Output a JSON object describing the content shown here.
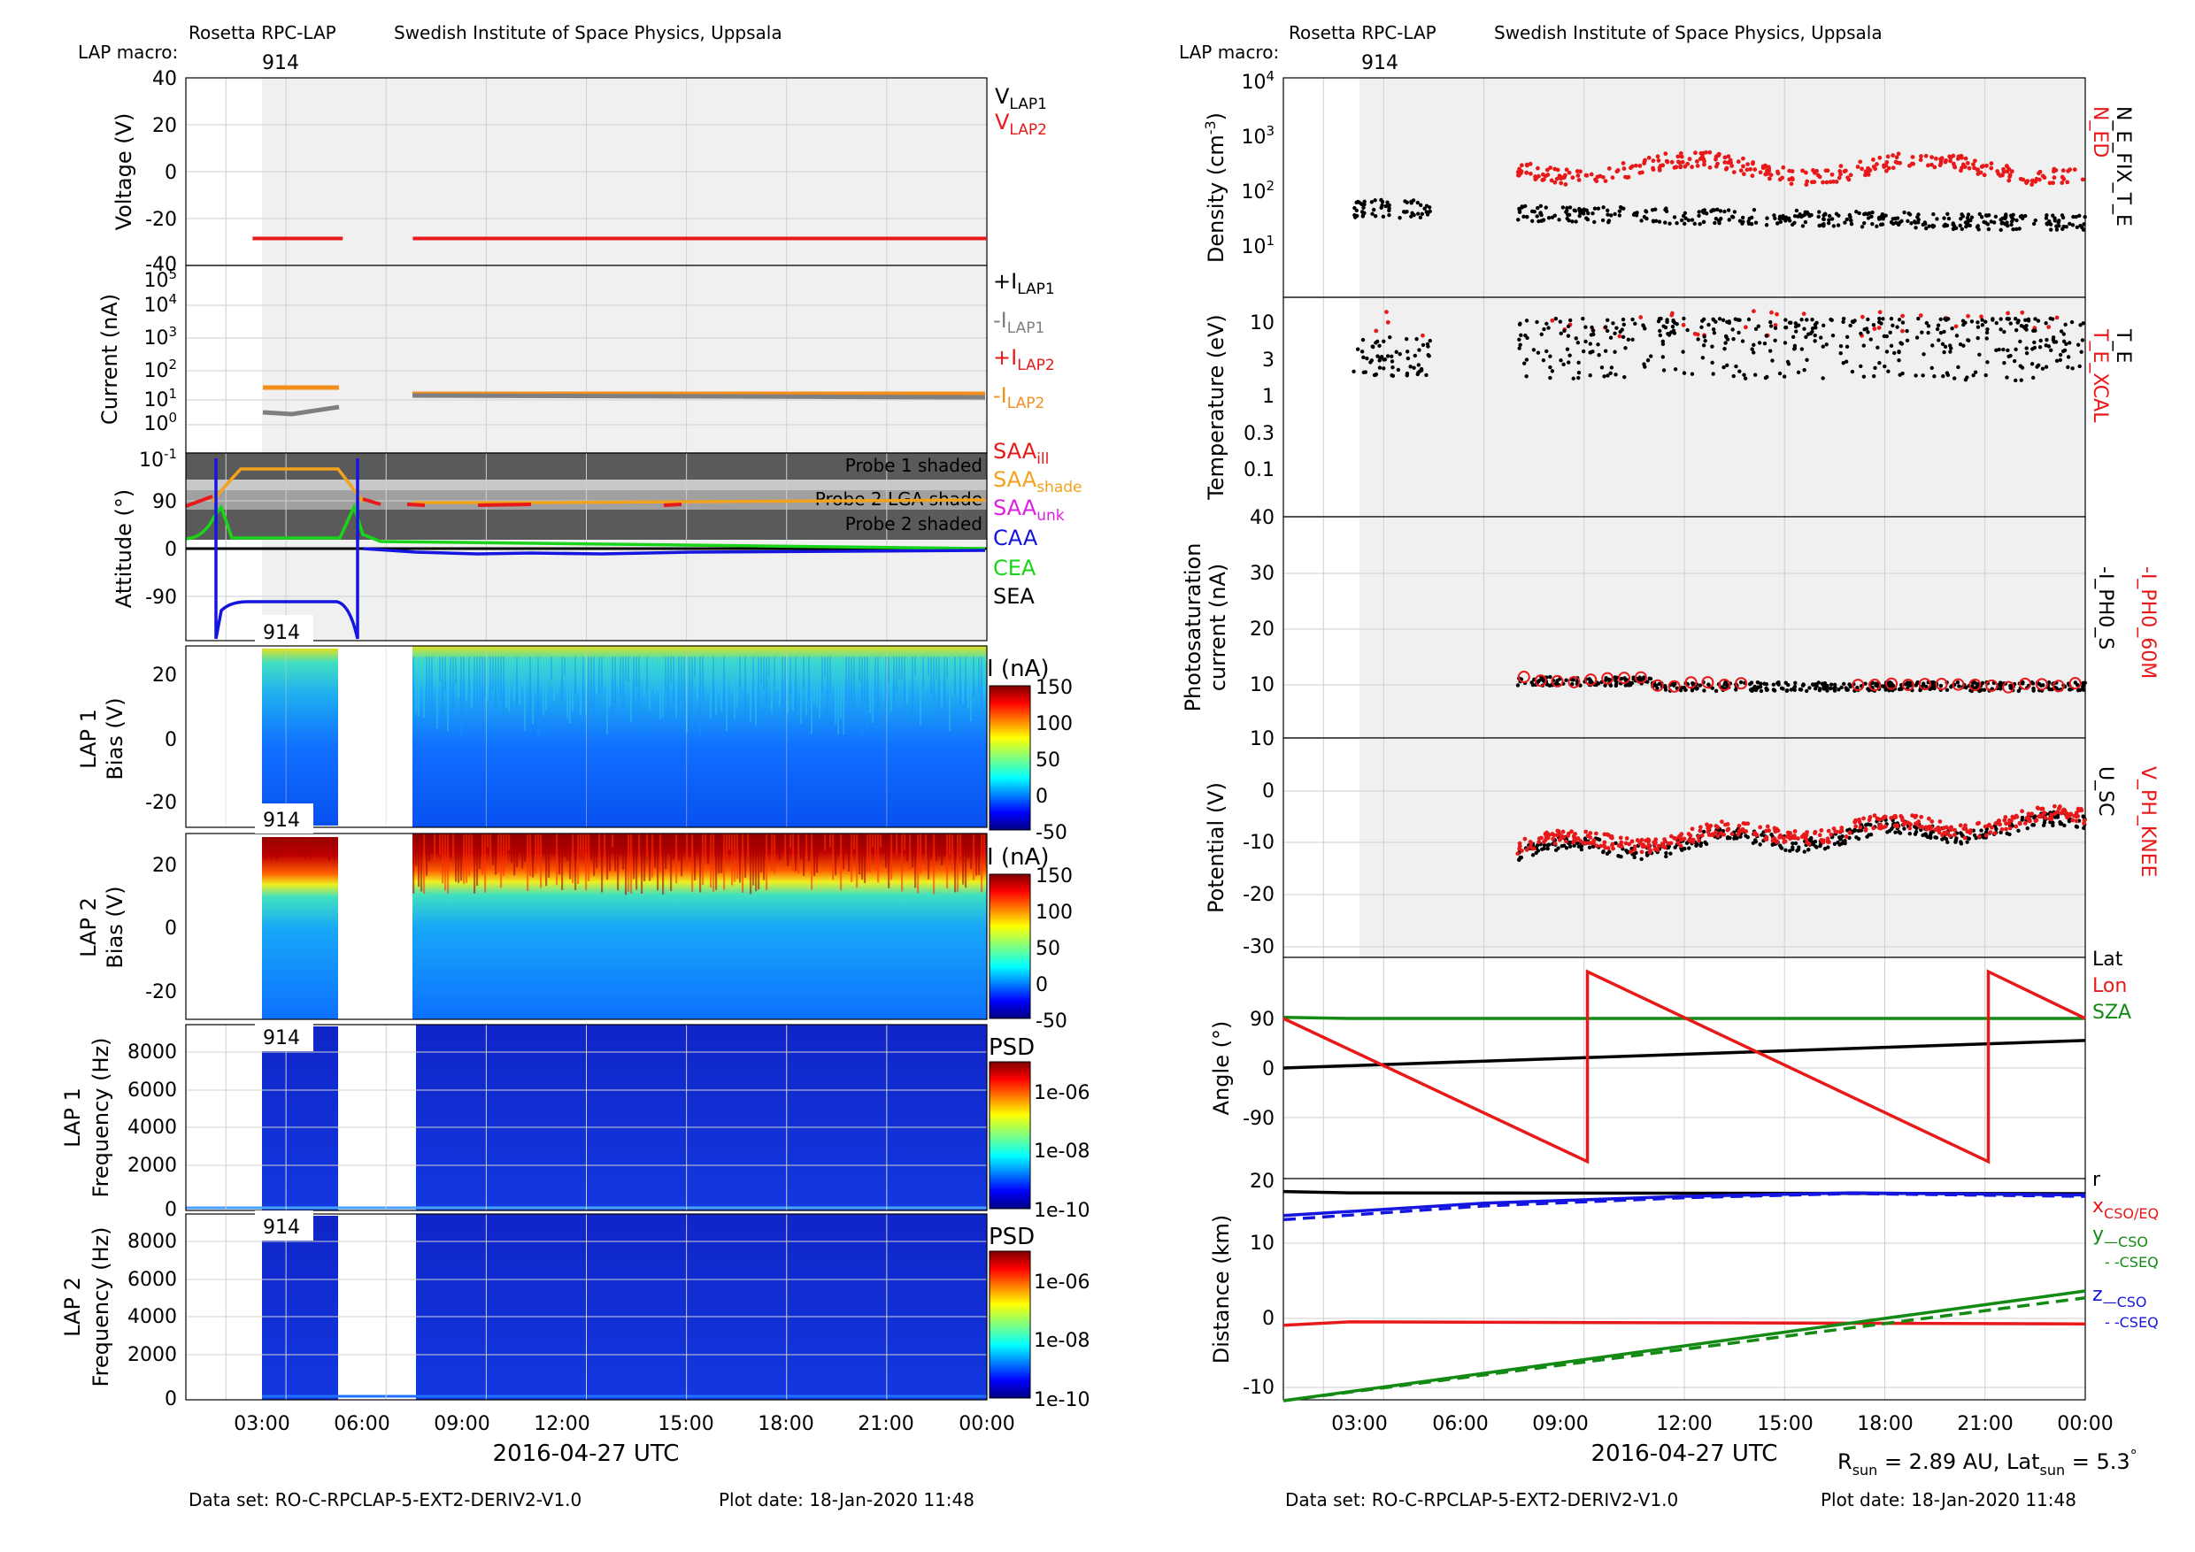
{
  "left": {
    "header": {
      "instrument": "Rosetta RPC-LAP",
      "institute": "Swedish Institute of Space Physics, Uppsala",
      "macro_label": "LAP macro:",
      "macro_value": "914"
    },
    "footer": {
      "dataset": "Data set: RO-C-RPCLAP-5-EXT2-DERIV2-V1.0",
      "plot_date": "Plot date: 18-Jan-2020 11:48"
    },
    "xlabel": "2016-04-27 UTC",
    "xticks": [
      "03:00",
      "06:00",
      "09:00",
      "12:00",
      "15:00",
      "18:00",
      "21:00",
      "00:00"
    ]
  },
  "right": {
    "header": {
      "instrument": "Rosetta RPC-LAP",
      "institute": "Swedish Institute of Space Physics, Uppsala",
      "macro_label": "LAP macro:",
      "macro_value": "914"
    },
    "footer": {
      "dataset": "Data set: RO-C-RPCLAP-5-EXT2-DERIV2-V1.0",
      "plot_date": "Plot date: 18-Jan-2020 11:48"
    },
    "xlabel": "2016-04-27 UTC",
    "xticks": [
      "03:00",
      "06:00",
      "09:00",
      "12:00",
      "15:00",
      "18:00",
      "21:00",
      "00:00"
    ],
    "sun_info": "R_sun = 2.89 AU, Lat_sun = 5.3°"
  },
  "chart_data": [
    {
      "id": "voltage",
      "type": "line",
      "ylabel": "Voltage (V)",
      "ylim": [
        -40,
        40
      ],
      "yticks": [
        "40",
        "20",
        "0",
        "-20",
        "-40"
      ],
      "legend": [
        {
          "name": "V_LAP1",
          "color": "#000000"
        },
        {
          "name": "V_LAP2",
          "color": "#e8191a"
        }
      ],
      "series": [
        {
          "name": "V_LAP2",
          "segments": [
            [
              [
                2.0,
                -28.5
              ],
              [
                4.7,
                -28.5
              ]
            ],
            [
              [
                6.8,
                -28.5
              ],
              [
                24.0,
                -28.5
              ]
            ]
          ]
        }
      ]
    },
    {
      "id": "current",
      "type": "line",
      "ylabel": "Current (nA)",
      "yscale": "log",
      "yticks": [
        "10^-1",
        "10^0",
        "10^1",
        "10^2",
        "10^3",
        "10^4",
        "10^5"
      ],
      "legend": [
        {
          "name": "+I_LAP1",
          "color": "#000000"
        },
        {
          "name": "-I_LAP1",
          "color": "#7f7f7f"
        },
        {
          "name": "+I_LAP2",
          "color": "#e8191a"
        },
        {
          "name": "-I_LAP2",
          "color": "#f28e1c"
        }
      ]
    },
    {
      "id": "attitude",
      "type": "line",
      "ylabel": "Attitude (°)",
      "ylim": [
        -180,
        180
      ],
      "yticks": [
        "90",
        "0",
        "-90"
      ],
      "annotations": [
        "Probe 1 shaded",
        "Probe 2 LGA shade",
        "Probe 2 shaded"
      ],
      "legend": [
        {
          "name": "SAA_ill",
          "color": "#e8191a"
        },
        {
          "name": "SAA_shade",
          "color": "#f2a21c"
        },
        {
          "name": "SAA_unk",
          "color": "#e020e0"
        },
        {
          "name": "CAA",
          "color": "#1515e0"
        },
        {
          "name": "CEA",
          "color": "#1ad41a"
        },
        {
          "name": "SEA",
          "color": "#000000"
        }
      ]
    },
    {
      "id": "lap1_bias",
      "type": "heatmap",
      "ylabel": "LAP 1 Bias (V)",
      "yticks": [
        "20",
        "0",
        "-20"
      ],
      "colorbar_label": "I (nA)",
      "colorbar_ticks": [
        "150",
        "100",
        "50",
        "0",
        "-50"
      ],
      "macro": "914"
    },
    {
      "id": "lap2_bias",
      "type": "heatmap",
      "ylabel": "LAP 2 Bias (V)",
      "yticks": [
        "20",
        "0",
        "-20"
      ],
      "colorbar_label": "I (nA)",
      "colorbar_ticks": [
        "150",
        "100",
        "50",
        "0",
        "-50"
      ],
      "macro": "914"
    },
    {
      "id": "lap1_freq",
      "type": "heatmap",
      "ylabel": "LAP 1 Frequency (Hz)",
      "yticks": [
        "8000",
        "6000",
        "4000",
        "2000",
        "0"
      ],
      "colorbar_label": "PSD",
      "colorbar_ticks": [
        "1e-06",
        "1e-08",
        "1e-10"
      ],
      "macro": "914"
    },
    {
      "id": "lap2_freq",
      "type": "heatmap",
      "ylabel": "LAP 2 Frequency (Hz)",
      "yticks": [
        "8000",
        "6000",
        "4000",
        "2000",
        "0"
      ],
      "colorbar_label": "PSD",
      "colorbar_ticks": [
        "1e-06",
        "1e-08",
        "1e-10"
      ],
      "macro": "914"
    },
    {
      "id": "density",
      "type": "scatter",
      "ylabel": "Density (cm^-3)",
      "yscale": "log",
      "yticks": [
        "10^4",
        "10^3",
        "10^2",
        "10^1"
      ],
      "legend": [
        {
          "name": "N_ED",
          "color": "#e8191a"
        },
        {
          "name": "N_E_FIX_T_E",
          "color": "#000000"
        }
      ]
    },
    {
      "id": "temperature",
      "type": "scatter",
      "ylabel": "Temperature (eV)",
      "yscale": "log",
      "yticks": [
        "10",
        "3",
        "1",
        "0.3",
        "0.1"
      ],
      "legend": [
        {
          "name": "T_E_XCAL",
          "color": "#e8191a"
        },
        {
          "name": "T_E",
          "color": "#000000"
        }
      ]
    },
    {
      "id": "photosat",
      "type": "scatter",
      "ylabel": "Photosaturation current (nA)",
      "yticks": [
        "40",
        "30",
        "20",
        "10"
      ],
      "legend": [
        {
          "name": "-I_PH0_60M",
          "color": "#e8191a"
        },
        {
          "name": "-I_PH0_S",
          "color": "#000000"
        }
      ]
    },
    {
      "id": "potential",
      "type": "scatter",
      "ylabel": "Potential (V)",
      "yticks": [
        "10",
        "0",
        "-10",
        "-20",
        "-30"
      ],
      "legend": [
        {
          "name": "V_PH_KNEE",
          "color": "#e8191a"
        },
        {
          "name": "U_SC",
          "color": "#000000"
        }
      ]
    },
    {
      "id": "angle",
      "type": "line",
      "ylabel": "Angle (°)",
      "ylim": [
        -180,
        180
      ],
      "yticks": [
        "90",
        "0",
        "-90"
      ],
      "legend": [
        {
          "name": "Lat",
          "color": "#000000"
        },
        {
          "name": "Lon",
          "color": "#e8191a"
        },
        {
          "name": "SZA",
          "color": "#138a13"
        }
      ],
      "series": [
        {
          "name": "Lat",
          "x": [
            0,
            24
          ],
          "y": [
            0,
            50
          ]
        },
        {
          "name": "SZA",
          "x": [
            0,
            2,
            24
          ],
          "y": [
            92,
            90,
            90
          ]
        },
        {
          "name": "Lon",
          "x": [
            0,
            9.1,
            9.1,
            21.1,
            21.1,
            24
          ],
          "y": [
            90,
            -170,
            175,
            -170,
            175,
            90
          ]
        }
      ]
    },
    {
      "id": "distance",
      "type": "line",
      "ylabel": "Distance (km)",
      "ylim": [
        -12,
        20
      ],
      "yticks": [
        "20",
        "10",
        "0",
        "-10"
      ],
      "legend": [
        {
          "name": "r",
          "color": "#000000"
        },
        {
          "name": "x CSO/EQ",
          "color": "#e8191a"
        },
        {
          "name": "y —CSO",
          "color": "#138a13"
        },
        {
          "name": "- -CSEQ",
          "color": "#138a13"
        },
        {
          "name": "z —CSO",
          "color": "#1515e0"
        },
        {
          "name": "- -CSEQ",
          "color": "#1515e0"
        }
      ],
      "series": [
        {
          "name": "r",
          "x": [
            0,
            2,
            24
          ],
          "y": [
            18.5,
            18.3,
            18.2
          ]
        },
        {
          "name": "x",
          "x": [
            0,
            2,
            24
          ],
          "y": [
            -1.0,
            -0.5,
            -0.8
          ]
        },
        {
          "name": "y_cso",
          "x": [
            0,
            24
          ],
          "y": [
            -12,
            4
          ]
        },
        {
          "name": "y_cseq",
          "x": [
            0,
            24
          ],
          "y": [
            -12,
            3
          ]
        },
        {
          "name": "z_cso",
          "x": [
            0,
            6,
            12,
            17,
            24
          ],
          "y": [
            15.0,
            16.8,
            17.8,
            18.3,
            18.0
          ]
        },
        {
          "name": "z_cseq",
          "x": [
            0,
            6,
            12,
            17,
            24
          ],
          "y": [
            14.4,
            16.4,
            17.6,
            18.2,
            17.8
          ]
        }
      ]
    }
  ]
}
